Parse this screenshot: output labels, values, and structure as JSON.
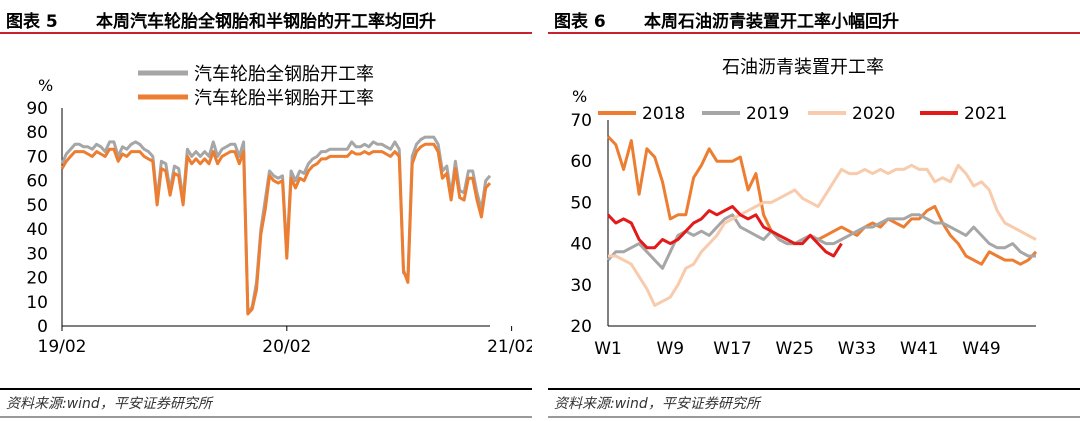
{
  "left": {
    "fig_no": "图表 5",
    "fig_title": "本周汽车轮胎全钢胎和半钢胎的开工率均回升",
    "source": "资料来源:wind，平安证券研究所"
  },
  "right": {
    "fig_no": "图表 6",
    "fig_title": "本周石油沥青装置开工率小幅回升",
    "source": "资料来源:wind，平安证券研究所"
  },
  "colors": {
    "rule_red": "#c8232c",
    "grey": "#a6a6a6",
    "orange": "#ed7d31",
    "peach": "#f8cbad",
    "red": "#e21a1a"
  },
  "chart_data": [
    {
      "type": "line",
      "title": "",
      "ylabel": "%",
      "xlabel": "",
      "ylim": [
        0,
        90
      ],
      "yticks": [
        "0",
        "10",
        "20",
        "30",
        "40",
        "50",
        "60",
        "70",
        "80",
        "90"
      ],
      "x_ticks": [
        "19/02",
        "20/02",
        "21/02"
      ],
      "x_tick_index": [
        0,
        52,
        104
      ],
      "legend_position": "top-center",
      "series": [
        {
          "name": "汽车轮胎全钢胎开工率",
          "color": "grey",
          "values": [
            67,
            71,
            73,
            75,
            75,
            74,
            74,
            73,
            75,
            74,
            72,
            76,
            76,
            70,
            74,
            73,
            75,
            76,
            75,
            73,
            72,
            70,
            52,
            68,
            67,
            56,
            66,
            65,
            52,
            73,
            70,
            72,
            70,
            72,
            70,
            76,
            70,
            73,
            74,
            75,
            75,
            70,
            76,
            5,
            8,
            18,
            40,
            52,
            64,
            62,
            61,
            62,
            30,
            64,
            60,
            64,
            63,
            67,
            69,
            70,
            72,
            72,
            73,
            73,
            73,
            73,
            73,
            76,
            74,
            74,
            75,
            74,
            76,
            75,
            75,
            74,
            73,
            76,
            73,
            22,
            20,
            70,
            75,
            77,
            78,
            78,
            78,
            75,
            64,
            66,
            54,
            68,
            56,
            55,
            64,
            64,
            55,
            48,
            60,
            62
          ]
        },
        {
          "name": "汽车轮胎半钢胎开工率",
          "color": "orange",
          "values": [
            65,
            68,
            70,
            72,
            72,
            72,
            71,
            70,
            72,
            71,
            70,
            73,
            73,
            68,
            71,
            70,
            72,
            72,
            72,
            70,
            69,
            68,
            50,
            65,
            64,
            54,
            63,
            62,
            50,
            70,
            67,
            69,
            67,
            69,
            67,
            72,
            67,
            70,
            71,
            72,
            72,
            67,
            72,
            5,
            7,
            15,
            38,
            48,
            62,
            60,
            59,
            60,
            28,
            61,
            57,
            61,
            60,
            64,
            66,
            67,
            69,
            69,
            70,
            70,
            70,
            70,
            70,
            72,
            71,
            71,
            72,
            71,
            72,
            72,
            72,
            71,
            70,
            72,
            70,
            23,
            18,
            67,
            72,
            74,
            75,
            75,
            75,
            72,
            61,
            63,
            52,
            65,
            53,
            52,
            61,
            61,
            52,
            45,
            57,
            59
          ]
        }
      ]
    },
    {
      "type": "line",
      "title": "石油沥青装置开工率",
      "ylabel": "%",
      "xlabel": "",
      "ylim": [
        20,
        70
      ],
      "yticks": [
        "20",
        "30",
        "40",
        "50",
        "60",
        "70"
      ],
      "x_ticks": [
        "W1",
        "W9",
        "W17",
        "W25",
        "W33",
        "W41",
        "W49"
      ],
      "x_tick_week": [
        1,
        9,
        17,
        25,
        33,
        41,
        49
      ],
      "legend_position": "top",
      "series": [
        {
          "name": "2018",
          "color": "orange",
          "values": [
            66,
            64,
            58,
            65,
            52,
            63,
            61,
            55,
            46,
            47,
            47,
            56,
            59,
            63,
            60,
            60,
            60,
            61,
            53,
            57,
            47,
            43,
            41,
            40,
            40,
            41,
            42,
            41,
            42,
            43,
            44,
            43,
            42,
            44,
            45,
            44,
            46,
            45,
            44,
            46,
            46,
            48,
            49,
            45,
            42,
            40,
            37,
            36,
            35,
            38,
            37,
            36,
            36,
            35,
            36,
            38
          ]
        },
        {
          "name": "2019",
          "color": "grey",
          "values": [
            36,
            38,
            38,
            39,
            40,
            38,
            36,
            34,
            38,
            42,
            43,
            42,
            43,
            42,
            44,
            46,
            47,
            44,
            43,
            42,
            41,
            43,
            41,
            40,
            40,
            41,
            42,
            41,
            40,
            40,
            41,
            42,
            43,
            44,
            44,
            45,
            46,
            46,
            46,
            47,
            47,
            46,
            45,
            45,
            44,
            43,
            42,
            44,
            42,
            40,
            39,
            39,
            40,
            38,
            37,
            37
          ]
        },
        {
          "name": "2020",
          "color": "peach",
          "values": [
            37,
            37,
            36,
            35,
            32,
            29,
            25,
            26,
            27,
            30,
            34,
            35,
            38,
            40,
            42,
            45,
            46,
            47,
            48,
            49,
            50,
            50,
            51,
            52,
            53,
            51,
            50,
            49,
            52,
            55,
            58,
            57,
            57,
            58,
            57,
            58,
            57,
            58,
            58,
            59,
            58,
            58,
            55,
            56,
            55,
            59,
            57,
            54,
            55,
            53,
            48,
            45,
            44,
            43,
            42,
            41
          ]
        },
        {
          "name": "2021",
          "color": "red",
          "values": [
            47,
            45,
            46,
            45,
            41,
            39,
            39,
            41,
            40,
            41,
            43,
            45,
            46,
            48,
            47,
            48,
            49,
            47,
            46,
            47,
            44,
            43,
            42,
            41,
            40,
            40,
            42,
            40,
            38,
            37,
            40
          ]
        }
      ]
    }
  ]
}
